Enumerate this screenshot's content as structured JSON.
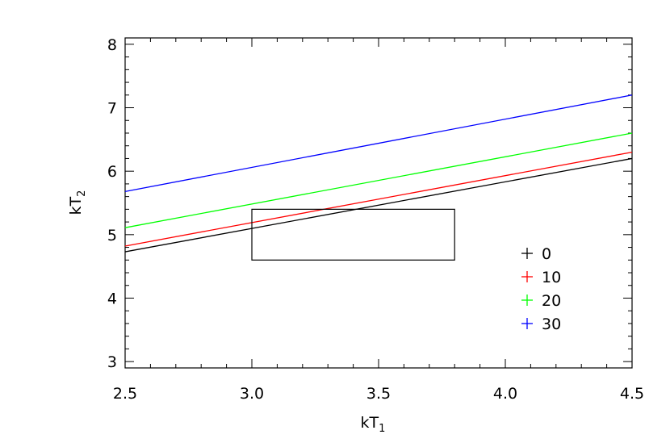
{
  "chart_data": {
    "type": "line",
    "title": "",
    "xlabel": {
      "base": "kT",
      "sub": "1"
    },
    "ylabel": {
      "base": "kT",
      "sub": "2"
    },
    "xlim": [
      2.5,
      4.5
    ],
    "ylim": [
      2.9,
      8.1
    ],
    "x_ticks": [
      2.5,
      3.0,
      3.5,
      4.0,
      4.5
    ],
    "x_tick_labels": [
      "2.5",
      "3.0",
      "3.5",
      "4.0",
      "4.5"
    ],
    "y_ticks": [
      3,
      4,
      5,
      6,
      7,
      8
    ],
    "y_tick_labels": [
      "3",
      "4",
      "5",
      "6",
      "7",
      "8"
    ],
    "grid": false,
    "legend_position": "lower-right",
    "series": [
      {
        "name": "0",
        "color": "#000000",
        "x": [
          2.5,
          4.5
        ],
        "y": [
          4.73,
          6.2
        ]
      },
      {
        "name": "10",
        "color": "#ff0000",
        "x": [
          2.5,
          4.5
        ],
        "y": [
          4.82,
          6.3
        ]
      },
      {
        "name": "20",
        "color": "#00ff00",
        "x": [
          2.5,
          4.5
        ],
        "y": [
          5.11,
          6.6
        ]
      },
      {
        "name": "30",
        "color": "#0000ff",
        "x": [
          2.5,
          4.5
        ],
        "y": [
          5.68,
          7.2
        ]
      }
    ],
    "box": {
      "x_range": [
        3.0,
        3.8
      ],
      "y_range": [
        4.6,
        5.4
      ],
      "color": "#000000"
    }
  }
}
